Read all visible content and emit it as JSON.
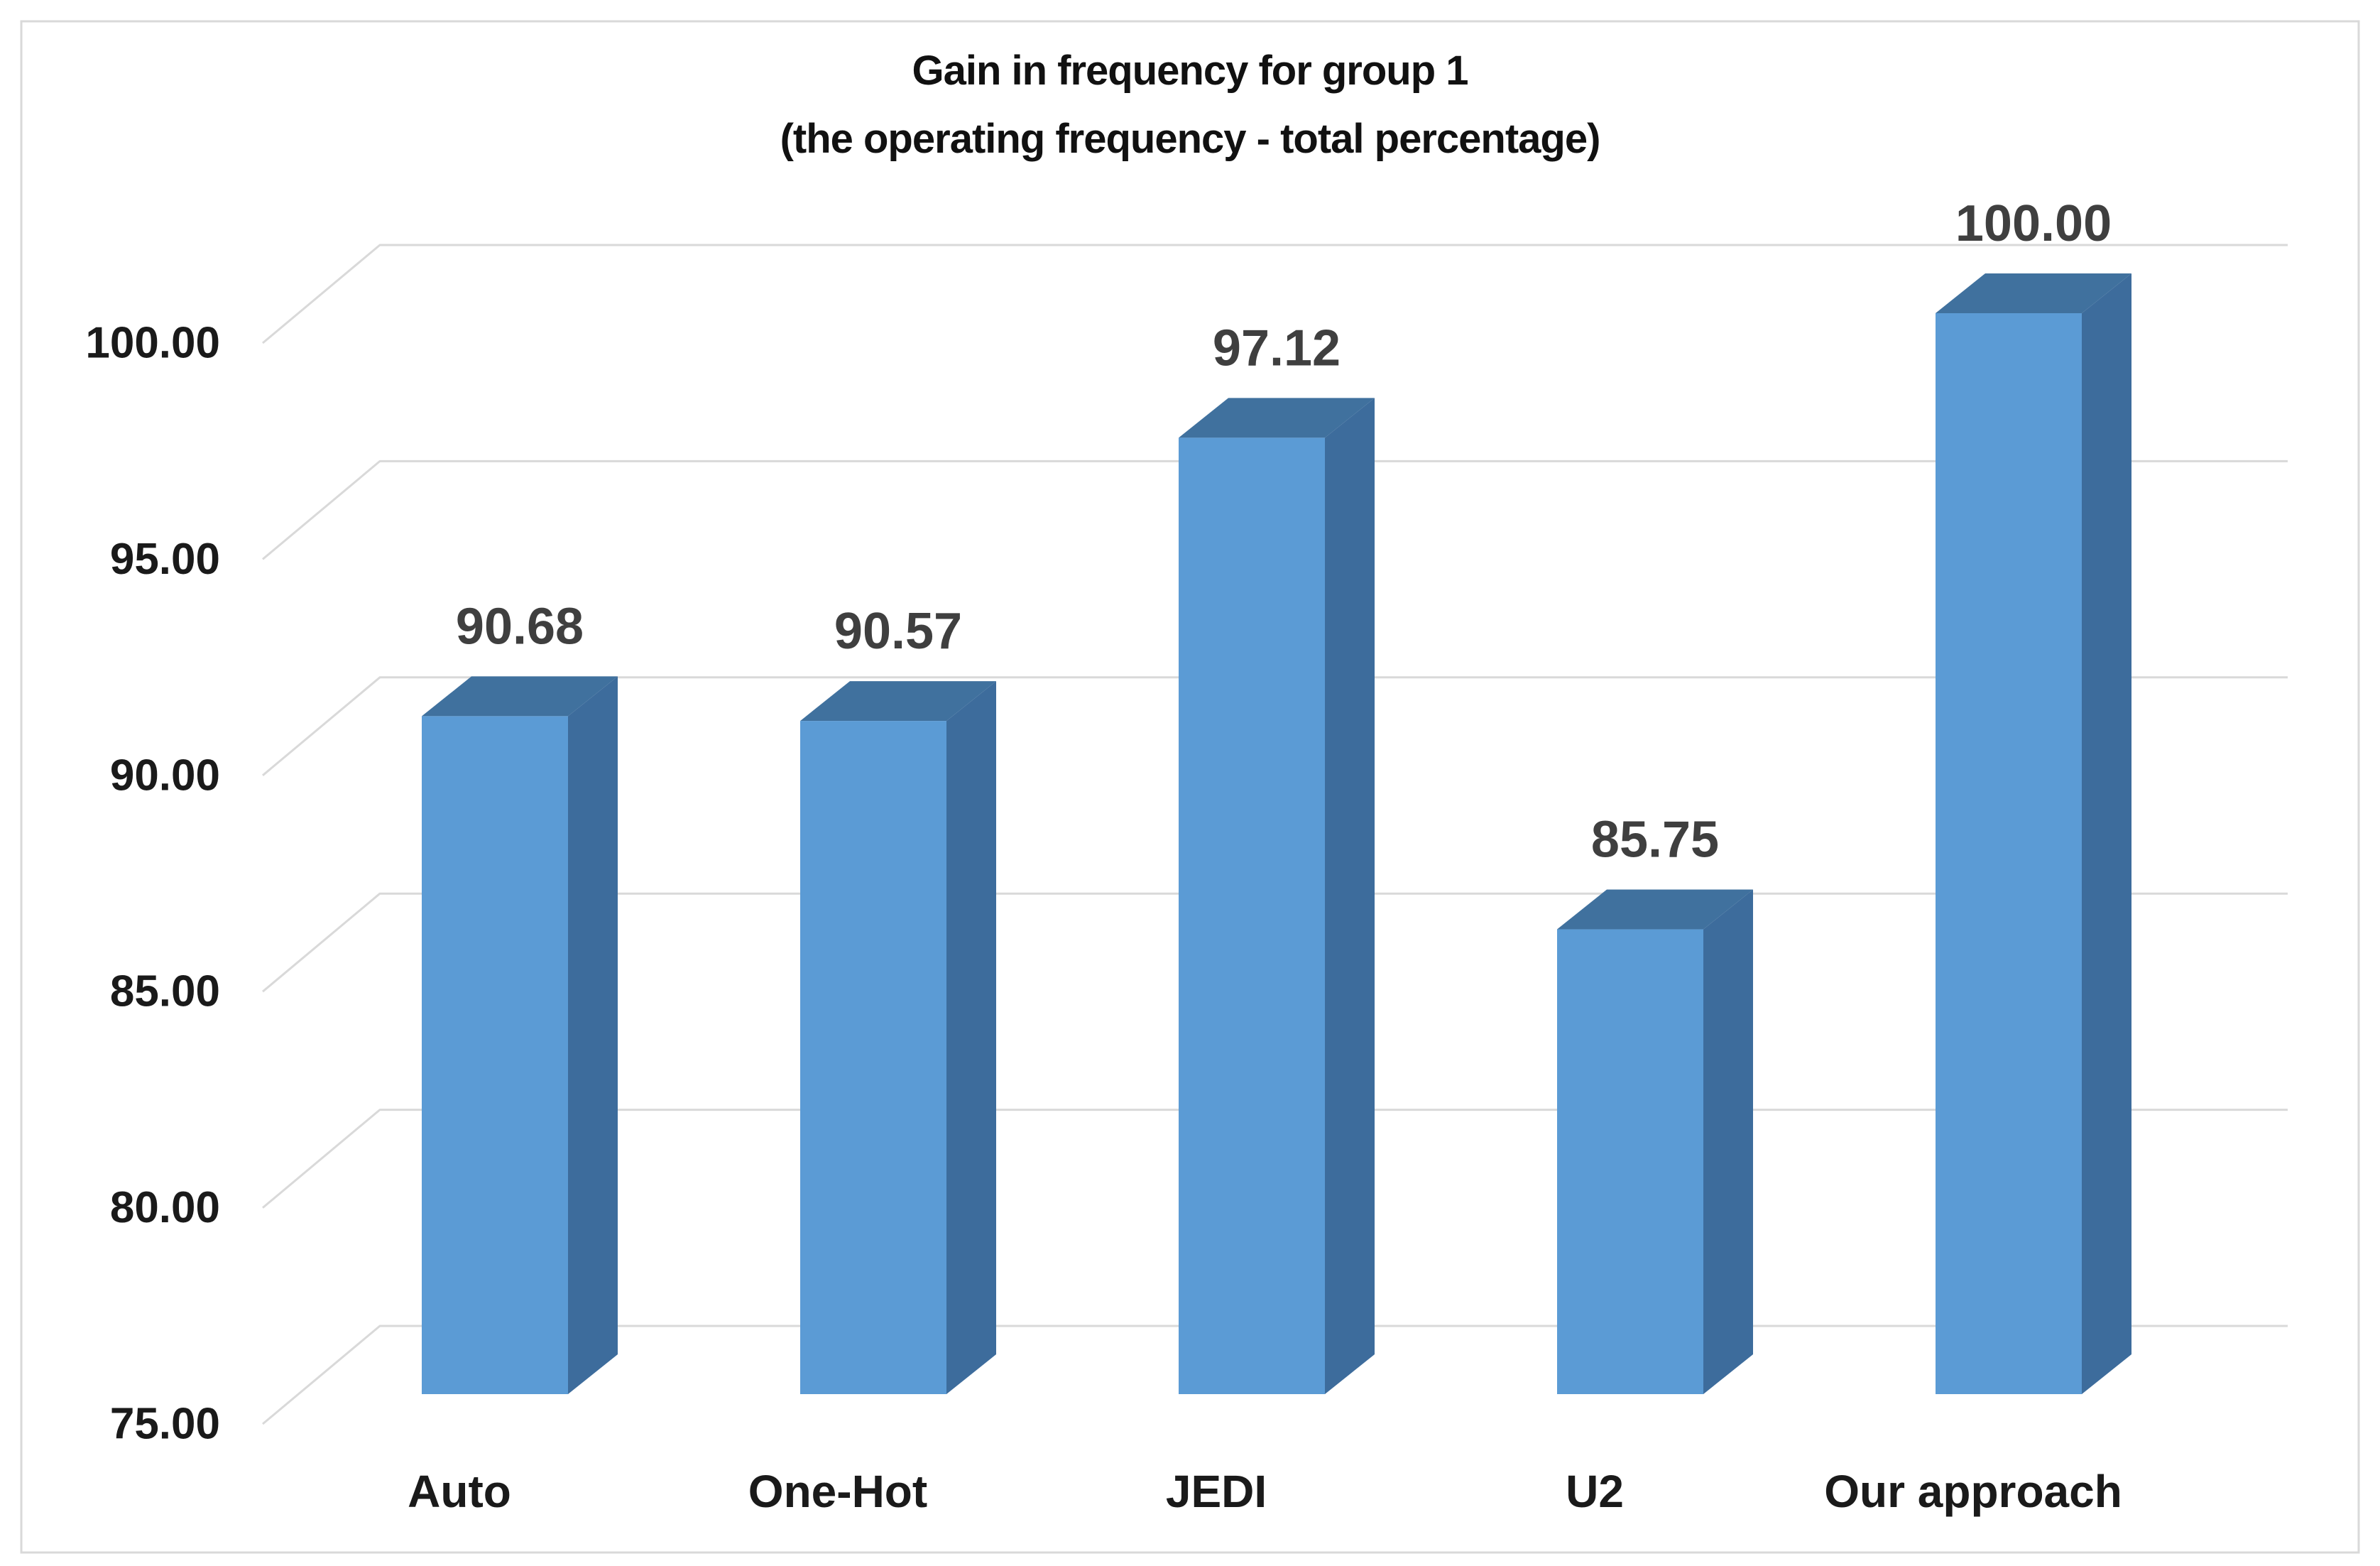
{
  "title": {
    "line1": "Gain in frequency for group 1",
    "line2": "(the operating frequency - total percentage)"
  },
  "chart_data": {
    "type": "bar",
    "style": "3d-column",
    "title": "Gain in frequency for group 1 (the operating frequency - total percentage)",
    "categories": [
      "Auto",
      "One-Hot",
      "JEDI",
      "U2",
      "Our approach"
    ],
    "values": [
      90.68,
      90.57,
      97.12,
      85.75,
      100.0
    ],
    "data_labels": [
      "90.68",
      "90.57",
      "97.12",
      "85.75",
      "100.00"
    ],
    "xlabel": "",
    "ylabel": "",
    "ylim": [
      75,
      100
    ],
    "ytick_step": 5,
    "ytick_labels": [
      "75.00",
      "80.00",
      "85.00",
      "90.00",
      "95.00",
      "100.00"
    ],
    "grid": true,
    "legend": false,
    "colors": {
      "bar_front": "#5B9BD5",
      "bar_top": "#40719E",
      "bar_side": "#3D6C9C",
      "gridline": "#D9D9D9",
      "frame_border": "#D9D9D9",
      "data_label": "#3F3F3F",
      "axis_label": "#1A1A1A",
      "category_label": "#1A1A1A",
      "background": "#FFFFFF"
    }
  }
}
